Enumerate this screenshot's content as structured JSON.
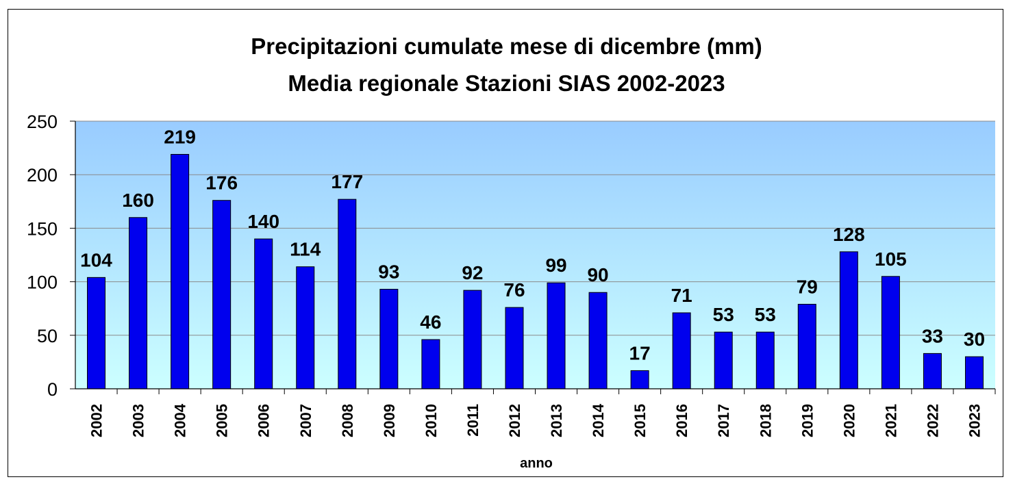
{
  "chart_data": {
    "type": "bar",
    "title": "Precipitazioni cumulate mese di dicembre (mm)",
    "subtitle": "Media regionale Stazioni SIAS 2002-2023",
    "xlabel": "anno",
    "ylabel": "",
    "categories": [
      "2002",
      "2003",
      "2004",
      "2005",
      "2006",
      "2007",
      "2008",
      "2009",
      "2010",
      "2011",
      "2012",
      "2013",
      "2014",
      "2015",
      "2016",
      "2017",
      "2018",
      "2019",
      "2020",
      "2021",
      "2022",
      "2023"
    ],
    "values": [
      104,
      160,
      219,
      176,
      140,
      114,
      177,
      93,
      46,
      92,
      76,
      99,
      90,
      17,
      71,
      53,
      53,
      79,
      128,
      105,
      33,
      30
    ],
    "ylim": [
      0,
      250
    ],
    "yticks": [
      0,
      50,
      100,
      150,
      200,
      250
    ],
    "grid": true,
    "legend": "none",
    "colors": {
      "bar": "#0000ee",
      "bar_outline": "#000000",
      "plot_bg_top": "#99ccff",
      "plot_bg_bottom": "#ccffff",
      "grid": "#8a8a8a"
    }
  }
}
